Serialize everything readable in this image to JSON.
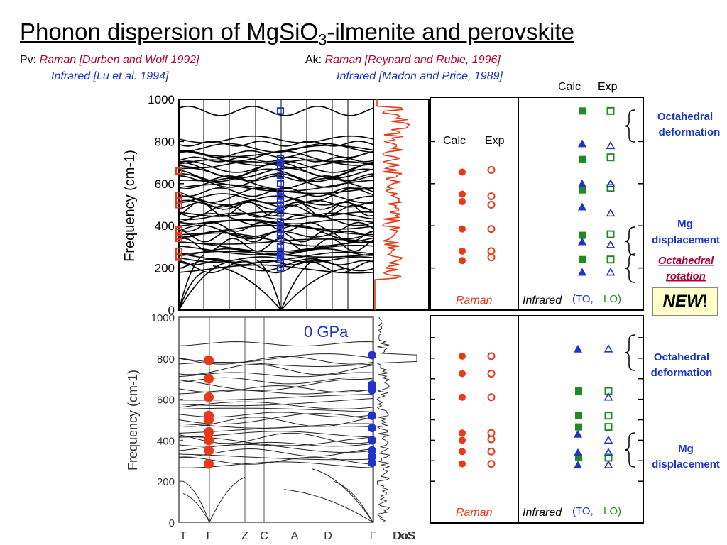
{
  "title": {
    "main": "Phonon dispersion of MgSiO",
    "sub": "3",
    "rest": "-ilmenite and perovskite"
  },
  "refs": {
    "pv_label": "Pv:",
    "pv_raman": "Raman [Durben and Wolf 1992]",
    "pv_ir": "Infrared [Lu et al. 1994]",
    "ak_label": "Ak:",
    "ak_raman": "Raman [Reynard and Rubie, 1996]",
    "ak_ir": "Infrared [Madon and Price, 1989]"
  },
  "colors": {
    "raman": "#e8391a",
    "ir_to": "#2233cc",
    "ir_lo": "#1e8c1e",
    "ref_red": "#b00030",
    "ref_blue": "#1a33cc"
  },
  "annotations": {
    "calc": "Calc",
    "exp": "Exp",
    "raman": "Raman",
    "infrared": "Infrared",
    "to": "(TO,",
    "lo": "LO)",
    "oct_def": [
      "Octahedral",
      "deformation"
    ],
    "mg_disp": [
      "Mg",
      "displacement"
    ],
    "oct_rot": [
      "Octahedral",
      "rotation"
    ],
    "new": "NEW",
    "new_excl": "!",
    "pressure": "0 GPa",
    "dos": "DoS"
  },
  "chart_data": [
    {
      "type": "line",
      "panel": "top dispersion (Pv)",
      "ylabel": "Frequency (cm-1)",
      "ylim": [
        0,
        1000
      ],
      "yticks": [
        0,
        200,
        400,
        600,
        800,
        1000
      ],
      "raman_exp_markers": [
        660,
        545,
        520,
        500,
        380,
        370,
        350,
        340,
        280,
        255,
        250
      ],
      "ir_exp_markers": [
        945,
        720,
        700,
        680,
        640,
        600,
        560,
        540,
        520,
        500,
        480,
        460,
        420,
        400,
        380,
        360,
        340,
        300,
        280,
        260,
        250,
        240,
        200
      ]
    },
    {
      "type": "line",
      "panel": "bottom dispersion (Ak)",
      "ylabel": "Frequency (cm-1)",
      "ylim": [
        0,
        1000
      ],
      "yticks": [
        0,
        200,
        400,
        600,
        800,
        1000
      ],
      "xticks": [
        "T",
        "Γ",
        "Z",
        "C",
        "A",
        "D",
        "Γ",
        "DoS"
      ],
      "raman_markers": [
        790,
        700,
        610,
        520,
        500,
        440,
        400,
        350,
        285
      ],
      "ir_markers": [
        815,
        670,
        645,
        520,
        460,
        400,
        350,
        320,
        290
      ]
    },
    {
      "type": "scatter",
      "panel": "top Raman",
      "calc": [
        655,
        550,
        515,
        385,
        280,
        235
      ],
      "exp": [
        665,
        540,
        500,
        385,
        280,
        250
      ]
    },
    {
      "type": "scatter",
      "panel": "top Infrared",
      "calc_lo": [
        945,
        715,
        570,
        355,
        240
      ],
      "exp_lo": [
        945,
        725,
        580,
        360,
        240
      ],
      "calc_to": [
        790,
        600,
        490,
        325,
        180
      ],
      "exp_to": [
        780,
        600,
        460,
        310,
        180
      ]
    },
    {
      "type": "scatter",
      "panel": "bottom Raman",
      "calc": [
        810,
        725,
        610,
        435,
        400,
        345,
        285
      ],
      "exp": [
        810,
        725,
        610,
        435,
        405,
        345,
        285
      ]
    },
    {
      "type": "scatter",
      "panel": "bottom Infrared",
      "calc_lo": [
        640,
        520,
        465,
        315
      ],
      "exp_lo": [
        640,
        520,
        465,
        315
      ],
      "calc_to": [
        845,
        430,
        340,
        280
      ],
      "exp_to": [
        845,
        610,
        400,
        340,
        280
      ]
    }
  ]
}
